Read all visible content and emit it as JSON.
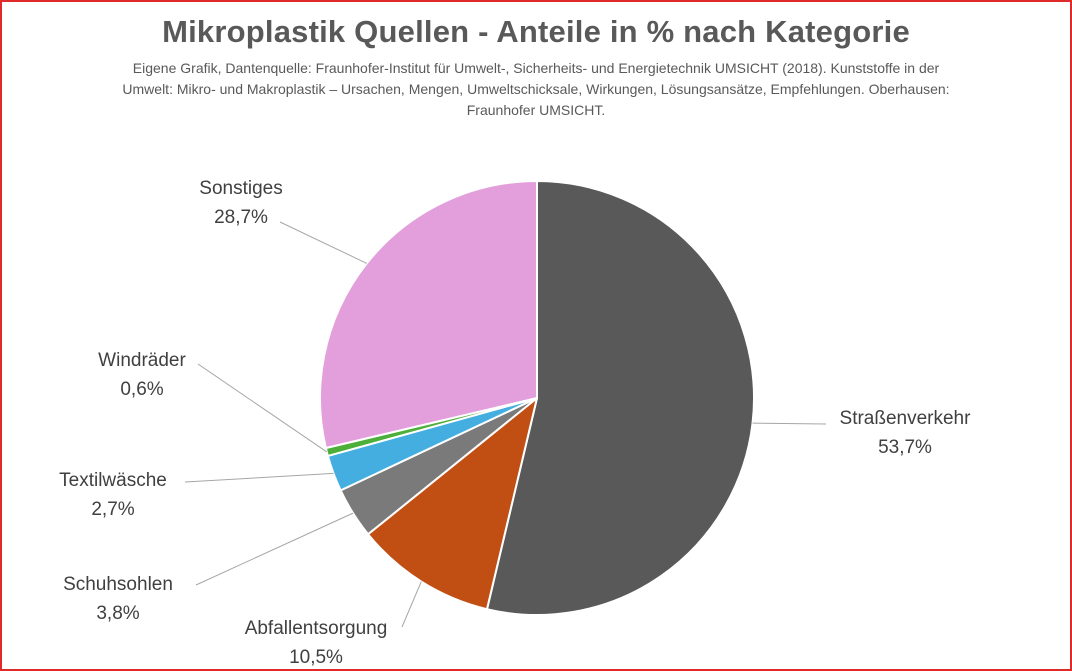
{
  "chart_data": {
    "type": "pie",
    "title": "Mikroplastik Quellen - Anteile in % nach Kategorie",
    "subtitle": "Eigene Grafik, Dantenquelle: Fraunhofer-Institut für Umwelt-, Sicherheits- und Energietechnik UMSICHT (2018). Kunststoffe in der Umwelt: Mikro- und Makroplastik – Ursachen, Mengen, Umweltschicksale, Wirkungen, Lösungsansätze, Empfehlungen. Oberhausen: Fraunhofer UMSICHT.",
    "slices": [
      {
        "name": "Straßenverkehr",
        "value": 53.7,
        "label": "53,7%",
        "color": "#595959"
      },
      {
        "name": "Abfallentsorgung",
        "value": 10.5,
        "label": "10,5%",
        "color": "#c14f14"
      },
      {
        "name": "Schuhsohlen",
        "value": 3.8,
        "label": "3,8%",
        "color": "#7a7a7a"
      },
      {
        "name": "Textilwäsche",
        "value": 2.7,
        "label": "2,7%",
        "color": "#45aee0"
      },
      {
        "name": "Windräder",
        "value": 0.6,
        "label": "0,6%",
        "color": "#4caf3a"
      },
      {
        "name": "Sonstiges",
        "value": 28.7,
        "label": "28,7%",
        "color": "#e39edc"
      }
    ],
    "start_angle_deg": 0,
    "direction": "clockwise",
    "data_labels": "outside with leader lines"
  },
  "colors": {
    "border": "#e02a2a",
    "title": "#595959",
    "slice_separator": "#ffffff",
    "leader_line": "#a6a6a6"
  }
}
